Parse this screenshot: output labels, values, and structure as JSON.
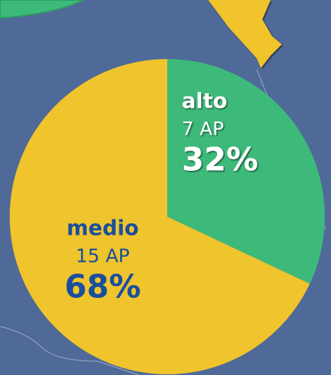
{
  "chart_data": {
    "type": "pie",
    "categories": [
      "alto",
      "medio"
    ],
    "values": [
      32,
      68
    ],
    "value_labels": [
      "32%",
      "68%"
    ],
    "count_labels": [
      "7 AP",
      "15 AP"
    ],
    "colors": [
      "#3dba7a",
      "#f0c42c"
    ],
    "label_colors": [
      "#ffffff",
      "#1a4f9e"
    ]
  }
}
